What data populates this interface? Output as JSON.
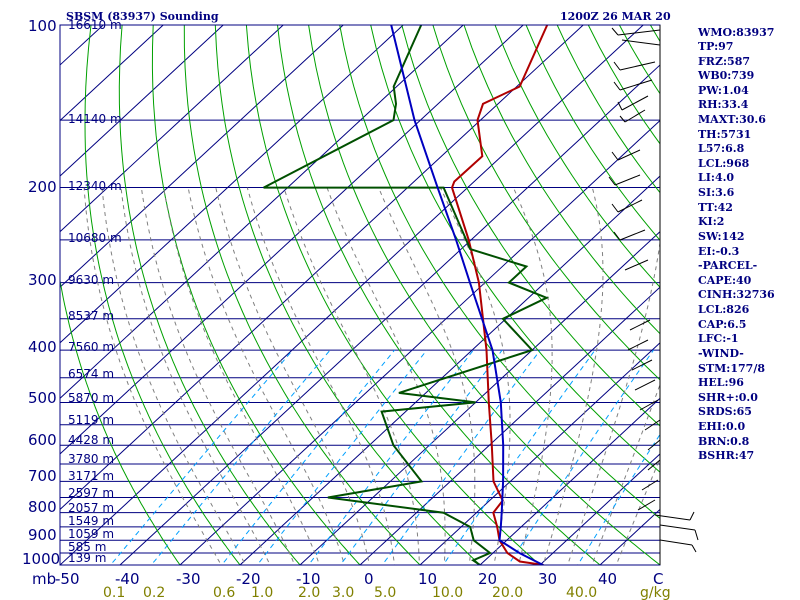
{
  "header": {
    "station": "SBSM (83937) Sounding",
    "time": "1200Z 26 MAR 20"
  },
  "units": {
    "pressure": "mb",
    "mixing_ratio": "g/kg"
  },
  "pressure_labels": [
    "100",
    "200",
    "300",
    "400",
    "500",
    "600",
    "700",
    "800",
    "900",
    "1000"
  ],
  "height_labels": [
    "16610 m",
    "14140 m",
    "12340 m",
    "10680 m",
    "9630 m",
    "8537 m",
    "7560 m",
    "6574 m",
    "5870 m",
    "5119 m",
    "4428 m",
    "3780 m",
    "3171 m",
    "2597 m",
    "2057 m",
    "1549 m",
    "1059 m",
    "585 m",
    "139 m"
  ],
  "temp_labels": [
    "-50",
    "-40",
    "-30",
    "-20",
    "-10",
    "0",
    "10",
    "20",
    "30",
    "40",
    "C"
  ],
  "mixing_ratio_labels": [
    "0.1",
    "0.2",
    "0.6",
    "1.0",
    "2.0",
    "3.0",
    "5.0",
    "10.0",
    "20.0",
    "40.0"
  ],
  "indices": [
    "WMO:83937",
    "TP:97",
    "FRZ:587",
    "WB0:739",
    "PW:1.04",
    "RH:33.4",
    "MAXT:30.6",
    "TH:5731",
    "L57:6.8",
    "LCL:968",
    "LI:4.0",
    "SI:3.6",
    "TT:42",
    "KI:2",
    "SW:142",
    "EI:-0.3",
    "-PARCEL-",
    "CAPE:40",
    "CINH:32736",
    "LCL:826",
    "CAP:6.5",
    "LFC:-1",
    "-WIND-",
    "STM:177/8",
    "HEL:96",
    "SHR+:0.0",
    "SRDS:65",
    "EHI:0.0",
    "BRN:0.8",
    "BSHR:47"
  ],
  "colors": {
    "frame": "#000080",
    "isotherm": "#000080",
    "dry_adiabat": "#00a000",
    "moist_adiabat": "#808080",
    "mixing_ratio": "#00a0ff",
    "temperature": "#b00000",
    "dewpoint": "#005000",
    "parcel": "#0000c0"
  },
  "chart_data": {
    "type": "skew-t log-p sounding",
    "pressure_axis": {
      "range": [
        1000,
        100
      ],
      "scale": "log",
      "unit": "mb"
    },
    "temperature_axis": {
      "range": [
        -50,
        50
      ],
      "unit": "C"
    },
    "series": [
      {
        "name": "temperature",
        "points": [
          {
            "p": 1000,
            "t": 30.6
          },
          {
            "p": 985,
            "t": 26.0
          },
          {
            "p": 950,
            "t": 22.4
          },
          {
            "p": 900,
            "t": 18.8
          },
          {
            "p": 850,
            "t": 16.0
          },
          {
            "p": 800,
            "t": 12.8
          },
          {
            "p": 760,
            "t": 12.2
          },
          {
            "p": 700,
            "t": 7.2
          },
          {
            "p": 600,
            "t": 0.4
          },
          {
            "p": 500,
            "t": -7.8
          },
          {
            "p": 400,
            "t": -17.6
          },
          {
            "p": 300,
            "t": -31.0
          },
          {
            "p": 250,
            "t": -40.4
          },
          {
            "p": 200,
            "t": -52.6
          },
          {
            "p": 195,
            "t": -53.3
          },
          {
            "p": 175,
            "t": -53.2
          },
          {
            "p": 150,
            "t": -60.5
          },
          {
            "p": 140,
            "t": -62.5
          },
          {
            "p": 130,
            "t": -59.5
          },
          {
            "p": 100,
            "t": -66.0
          }
        ]
      },
      {
        "name": "dewpoint",
        "points": [
          {
            "p": 1000,
            "t": 20.0
          },
          {
            "p": 980,
            "t": 18.0
          },
          {
            "p": 950,
            "t": 19.5
          },
          {
            "p": 900,
            "t": 14.5
          },
          {
            "p": 850,
            "t": 11.5
          },
          {
            "p": 800,
            "t": 4.5
          },
          {
            "p": 750,
            "t": -17.5
          },
          {
            "p": 700,
            "t": -4.8
          },
          {
            "p": 600,
            "t": -16.0
          },
          {
            "p": 520,
            "t": -24.0
          },
          {
            "p": 500,
            "t": -10.0
          },
          {
            "p": 480,
            "t": -24.5
          },
          {
            "p": 400,
            "t": -10.0
          },
          {
            "p": 350,
            "t": -20.5
          },
          {
            "p": 320,
            "t": -17.0
          },
          {
            "p": 300,
            "t": -26.0
          },
          {
            "p": 280,
            "t": -26.0
          },
          {
            "p": 260,
            "t": -38.5
          },
          {
            "p": 200,
            "t": -54.0
          },
          {
            "p": 200,
            "t": -84.0
          },
          {
            "p": 150,
            "t": -74.5
          },
          {
            "p": 140,
            "t": -77.0
          },
          {
            "p": 130,
            "t": -80.5
          },
          {
            "p": 100,
            "t": -87.0
          }
        ]
      },
      {
        "name": "parcel",
        "points": [
          {
            "p": 1000,
            "t": 30.5
          },
          {
            "p": 950,
            "t": 24.4
          },
          {
            "p": 900,
            "t": 18.8
          },
          {
            "p": 850,
            "t": 16.6
          },
          {
            "p": 800,
            "t": 14.2
          },
          {
            "p": 700,
            "t": 8.8
          },
          {
            "p": 600,
            "t": 2.3
          },
          {
            "p": 500,
            "t": -5.8
          },
          {
            "p": 400,
            "t": -16.6
          },
          {
            "p": 300,
            "t": -32.5
          },
          {
            "p": 250,
            "t": -42.5
          },
          {
            "p": 200,
            "t": -55.0
          },
          {
            "p": 150,
            "t": -71.0
          },
          {
            "p": 100,
            "t": -92.0
          }
        ]
      }
    ]
  }
}
